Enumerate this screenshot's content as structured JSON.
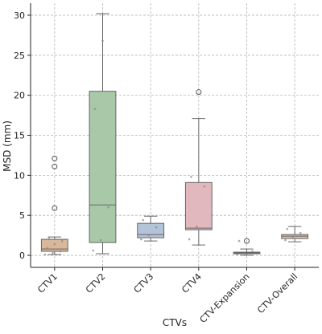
{
  "chart_data": {
    "type": "box",
    "title": "",
    "xlabel": "CTVs",
    "ylabel": "MSD (mm)",
    "ylim": [
      -1.5,
      31.5
    ],
    "yticks": [
      0,
      5,
      10,
      15,
      20,
      25,
      30
    ],
    "grid": true,
    "categories": [
      "CTV1",
      "CTV2",
      "CTV3",
      "CTV4",
      "CTV-Expansion",
      "CTV-Overall"
    ],
    "boxes": [
      {
        "category": "CTV1",
        "color": "#d8b89a",
        "whisker_low": 0.1,
        "q1": 0.5,
        "median": 0.8,
        "q3": 2.0,
        "whisker_high": 2.3,
        "outliers": [
          12.1,
          11.1,
          5.9
        ],
        "points": [
          0.1,
          0.3,
          0.5,
          0.9,
          1.4,
          1.8,
          2.2
        ]
      },
      {
        "category": "CTV2",
        "color": "#a8c8a8",
        "whisker_low": 0.2,
        "q1": 1.6,
        "median": 6.3,
        "q3": 20.5,
        "whisker_high": 30.2,
        "outliers": [],
        "points": [
          0.6,
          1.9,
          6.0,
          18.3,
          26.8
        ]
      },
      {
        "category": "CTV3",
        "color": "#b3c3d8",
        "whisker_low": 1.8,
        "q1": 2.2,
        "median": 2.6,
        "q3": 4.0,
        "whisker_high": 4.9,
        "outliers": [],
        "points": [
          2.0,
          2.5,
          3.5,
          4.4
        ]
      },
      {
        "category": "CTV4",
        "color": "#e0b8be",
        "whisker_low": 1.3,
        "q1": 3.2,
        "median": 3.4,
        "q3": 9.1,
        "whisker_high": 17.1,
        "outliers": [
          20.4
        ],
        "points": [
          2.0,
          3.6,
          8.6,
          9.8
        ]
      },
      {
        "category": "CTV-Expansion",
        "color": "#c8ccd6",
        "whisker_low": 0.0,
        "q1": 0.2,
        "median": 0.3,
        "q3": 0.4,
        "whisker_high": 0.8,
        "outliers": [
          1.8
        ],
        "points": [
          0.1,
          0.2,
          0.5,
          1.8
        ]
      },
      {
        "category": "CTV-Overall",
        "color": "#ddbfa6",
        "whisker_low": 1.7,
        "q1": 2.1,
        "median": 2.4,
        "q3": 2.6,
        "whisker_high": 3.6,
        "outliers": [],
        "points": [
          1.9,
          2.3,
          2.8,
          3.3
        ]
      }
    ]
  }
}
